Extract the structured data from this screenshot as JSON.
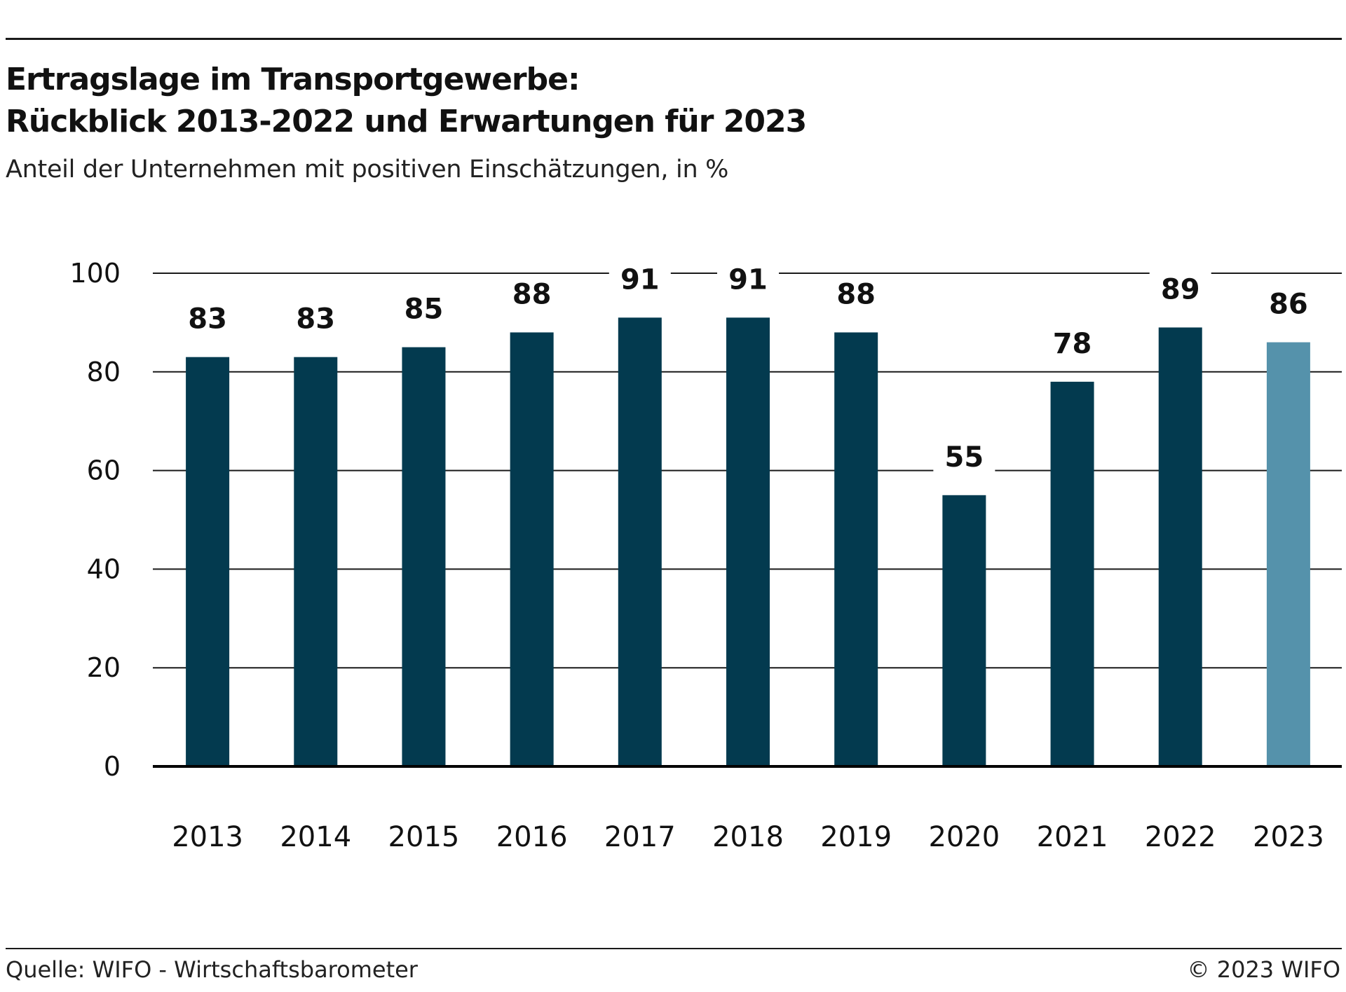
{
  "header": {
    "title_line1": "Ertragslage im Transportgewerbe:",
    "title_line2": "Rückblick 2013-2022 und Erwartungen für 2023",
    "subtitle": "Anteil der Unternehmen mit positiven Einschätzungen, in %"
  },
  "footer": {
    "source": "Quelle: WIFO - Wirtschaftsbarometer",
    "copyright": "© 2023 WIFO"
  },
  "colors": {
    "actual": "#033a4f",
    "expectation": "#5592ab",
    "gridline": "#1a1a1a"
  },
  "chart_data": {
    "type": "bar",
    "title": "Ertragslage im Transportgewerbe: Rückblick 2013-2022 und Erwartungen für 2023",
    "subtitle": "Anteil der Unternehmen mit positiven Einschätzungen, in %",
    "categories": [
      "2013",
      "2014",
      "2015",
      "2016",
      "2017",
      "2018",
      "2019",
      "2020",
      "2021",
      "2022",
      "2023"
    ],
    "values": [
      83,
      83,
      85,
      88,
      91,
      91,
      88,
      55,
      78,
      89,
      86
    ],
    "highlight_category": "2023",
    "ylim": [
      0,
      100
    ],
    "yticks": [
      0,
      20,
      40,
      60,
      80,
      100
    ],
    "grid": true,
    "data_labels": true,
    "legend": false
  }
}
